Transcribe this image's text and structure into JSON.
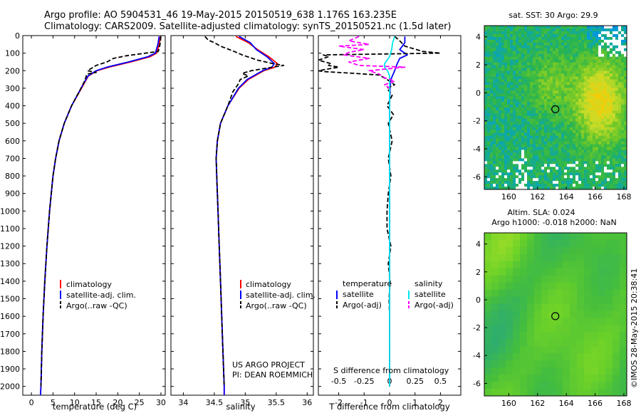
{
  "header": {
    "line1": "Argo profile: AO 5904531_46 19-May-2015 20150519_638 1.176S 163.235E",
    "line2": "Climatology: CARS2009. Satellite-adjusted climatology: synTS_20150521.nc (1.5d later)"
  },
  "colors": {
    "climatology": "#ff0000",
    "satellite": "#0000ff",
    "argo": "#000000",
    "sat_salinity": "#00e5ee",
    "argo_salinity_diff": "#ff00ff"
  },
  "annotations": {
    "project": "US ARGO PROJECT",
    "pi": "PI: DEAN ROEMMICH",
    "copyright": "©IMOS 28-May-2015 20:38:41"
  },
  "chart_data": [
    {
      "type": "line",
      "id": "temperature",
      "xlabel": "temperature (deg C)",
      "ylabel": "",
      "xlim": [
        -2,
        31
      ],
      "ylim": [
        2050,
        0
      ],
      "xticks": [
        0,
        5,
        10,
        15,
        20,
        25,
        30
      ],
      "yticks": [
        0,
        100,
        200,
        300,
        400,
        500,
        600,
        700,
        800,
        900,
        1000,
        1100,
        1200,
        1300,
        1400,
        1500,
        1600,
        1700,
        1800,
        1900,
        2000
      ],
      "legend": [
        "climatology",
        "satellite-adj. clim.",
        "Argo(..raw -QC)"
      ],
      "series": [
        {
          "name": "climatology",
          "depth": [
            5,
            50,
            100,
            120,
            150,
            180,
            200,
            230,
            260,
            300,
            400,
            500,
            600,
            700,
            800,
            1000,
            1200,
            1400,
            1600,
            1800,
            2000,
            2050
          ],
          "values": [
            29.9,
            29.6,
            29.0,
            27.5,
            23.0,
            18.0,
            15.2,
            13.2,
            12.5,
            11.6,
            9.3,
            7.6,
            6.4,
            5.6,
            5.0,
            4.2,
            3.6,
            3.1,
            2.7,
            2.4,
            2.2,
            2.1
          ]
        },
        {
          "name": "satellite-adj. clim.",
          "depth": [
            5,
            50,
            100,
            120,
            150,
            180,
            200,
            230,
            260,
            300,
            400,
            500,
            600,
            700,
            800,
            1000,
            1200,
            1400,
            1600,
            1800,
            2000,
            2050
          ],
          "values": [
            29.6,
            29.3,
            28.7,
            27.0,
            22.5,
            17.5,
            15.0,
            13.1,
            12.4,
            11.5,
            9.3,
            7.6,
            6.4,
            5.6,
            5.0,
            4.2,
            3.6,
            3.1,
            2.7,
            2.4,
            2.2,
            2.1
          ]
        },
        {
          "name": "Argo(..raw -QC)",
          "depth": [
            5,
            50,
            90,
            115,
            130,
            150,
            170,
            200,
            210,
            220,
            240,
            260,
            300,
            400,
            500,
            600,
            700,
            800,
            1000,
            1200,
            1400,
            1600,
            1800,
            2000
          ],
          "values": [
            30.0,
            29.8,
            29.4,
            22.0,
            19.0,
            17.5,
            15.0,
            13.0,
            15.0,
            12.8,
            12.6,
            12.3,
            11.5,
            9.3,
            7.6,
            6.4,
            5.6,
            5.0,
            4.2,
            3.6,
            3.1,
            2.7,
            2.4,
            2.2
          ]
        }
      ]
    },
    {
      "type": "line",
      "id": "salinity",
      "xlabel": "salinity",
      "xlim": [
        33.8,
        36.1
      ],
      "ylim": [
        2050,
        0
      ],
      "xticks": [
        34,
        34.5,
        35,
        35.5,
        36
      ],
      "legend": [
        "climatology",
        "satellite-adj. clim.",
        "Argo(..raw -QC)"
      ],
      "series": [
        {
          "name": "climatology",
          "depth": [
            5,
            40,
            80,
            120,
            160,
            180,
            200,
            250,
            300,
            400,
            500,
            600,
            700,
            800,
            1000,
            1200,
            1400,
            1600,
            1800,
            2000,
            2050
          ],
          "values": [
            34.85,
            35.05,
            35.2,
            35.38,
            35.52,
            35.48,
            35.3,
            35.05,
            34.9,
            34.72,
            34.6,
            34.55,
            34.53,
            34.54,
            34.56,
            34.58,
            34.6,
            34.62,
            34.64,
            34.66,
            34.66
          ]
        },
        {
          "name": "satellite-adj. clim.",
          "depth": [
            5,
            40,
            80,
            120,
            160,
            180,
            200,
            250,
            300,
            400,
            500,
            600,
            700,
            800,
            1000,
            1200,
            1400,
            1600,
            1800,
            2000,
            2050
          ],
          "values": [
            34.9,
            35.08,
            35.18,
            35.35,
            35.47,
            35.43,
            35.28,
            35.03,
            34.89,
            34.72,
            34.6,
            34.55,
            34.53,
            34.54,
            34.56,
            34.58,
            34.6,
            34.62,
            34.64,
            34.66,
            34.66
          ]
        },
        {
          "name": "Argo(..raw -QC)",
          "depth": [
            5,
            25,
            40,
            60,
            90,
            110,
            140,
            160,
            170,
            185,
            200,
            215,
            230,
            250,
            280,
            320,
            400,
            500,
            600,
            700,
            800,
            1000,
            1200,
            1400,
            1600,
            1800,
            2000
          ],
          "values": [
            34.35,
            34.4,
            34.5,
            34.6,
            34.82,
            34.95,
            35.2,
            35.45,
            35.62,
            35.35,
            35.1,
            34.95,
            35.05,
            34.92,
            34.88,
            34.8,
            34.72,
            34.6,
            34.55,
            34.53,
            34.54,
            34.56,
            34.58,
            34.6,
            34.62,
            34.64,
            34.66
          ]
        }
      ]
    },
    {
      "type": "line",
      "id": "difference",
      "xlabel": "T difference from climatology",
      "title": "S difference from climatology",
      "xlim": [
        -2.8,
        2.8
      ],
      "ylim": [
        2050,
        0
      ],
      "t_ticks": [
        "-2",
        "-1",
        "0",
        "1",
        "2"
      ],
      "t_tick_values": [
        -2,
        -1,
        0,
        1,
        2
      ],
      "s_ticks": [
        "-0.5",
        "-0.25",
        "0",
        "0.25",
        "0.5"
      ],
      "s_tick_values": [
        -0.5,
        -0.25,
        0,
        0.25,
        0.5
      ],
      "legend_headers": [
        "temperature",
        "salinity"
      ],
      "legend": [
        "satellite",
        "Argo(-adj)",
        "satellite",
        "Argo(-adj)"
      ],
      "series": [
        {
          "name": "T satellite",
          "depth": [
            5,
            40,
            80,
            110,
            130,
            160,
            200,
            250,
            300,
            400,
            600,
            1000,
            2000
          ],
          "values": [
            0.6,
            0.6,
            0.4,
            0.7,
            0.4,
            0.3,
            0.2,
            0.05,
            0.02,
            0.0,
            0.0,
            0.0,
            0.0
          ]
        },
        {
          "name": "T Argo(-adj)",
          "depth": [
            5,
            30,
            60,
            90,
            100,
            110,
            120,
            140,
            160,
            170,
            180,
            200,
            205,
            215,
            225,
            250,
            280,
            300,
            340,
            400,
            450,
            500,
            600,
            700,
            800,
            900,
            1000,
            1100,
            1200,
            1300,
            1400,
            1500,
            1600,
            1800,
            1900,
            2000
          ],
          "values": [
            0.2,
            0.4,
            0.6,
            1.3,
            2.0,
            -2.6,
            -2.4,
            -2.8,
            -2.3,
            -2.4,
            -2.0,
            -2.8,
            -2.6,
            -1.4,
            -0.4,
            -0.1,
            0.2,
            -0.1,
            0.1,
            -0.1,
            0.15,
            -0.05,
            0.1,
            -0.05,
            0.05,
            -0.05,
            -0.1,
            -0.1,
            0.05,
            -0.05,
            0.02,
            -0.02,
            0.0,
            0.0,
            0.0,
            0.0
          ]
        },
        {
          "name": "S satellite",
          "depth": [
            5,
            40,
            80,
            120,
            160,
            180,
            200,
            230,
            300,
            500,
            1000,
            2000
          ],
          "values": [
            0.05,
            0.03,
            0.02,
            0.0,
            -0.05,
            -0.05,
            -0.02,
            0.0,
            0.0,
            0.0,
            0.0,
            0.0
          ]
        },
        {
          "name": "S Argo(-adj)",
          "depth": [
            5,
            30,
            50,
            60,
            80,
            95,
            110,
            130,
            150,
            170,
            180,
            200,
            220,
            240,
            260,
            280,
            300
          ],
          "values": [
            -0.3,
            -0.4,
            -0.2,
            -0.5,
            -0.25,
            -0.4,
            -0.45,
            -0.2,
            -0.4,
            -0.3,
            0.15,
            -0.2,
            -0.1,
            -0.05,
            0.05,
            -0.05,
            0.0
          ]
        }
      ]
    },
    {
      "type": "heatmap",
      "id": "sst-map",
      "title": "sat. SST: 30 Argo: 29.9",
      "xlim": [
        158.3,
        168.2
      ],
      "ylim": [
        -6.9,
        4.8
      ],
      "xticks": [
        160,
        162,
        164,
        166,
        168
      ],
      "yticks": [
        -6,
        -4,
        -2,
        0,
        2,
        4
      ],
      "marker": [
        163.235,
        -1.176
      ]
    },
    {
      "type": "heatmap",
      "id": "sla-map",
      "title": "Altim. SLA: 0.024",
      "subtitle": "Argo h1000: -0.018 h2000: NaN",
      "xlim": [
        158.3,
        168.2
      ],
      "ylim": [
        -6.9,
        4.8
      ],
      "xticks": [
        160,
        162,
        164,
        166,
        168
      ],
      "yticks": [
        -6,
        -4,
        -2,
        0,
        2,
        4
      ],
      "marker": [
        163.235,
        -1.176
      ]
    }
  ]
}
